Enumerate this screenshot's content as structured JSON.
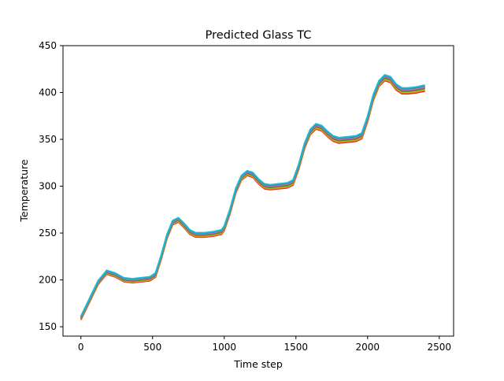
{
  "chart_data": {
    "type": "line",
    "title": "Predicted Glass TC",
    "xlabel": "Time step",
    "ylabel": "Temperature",
    "xlim": [
      -125,
      2600
    ],
    "ylim": [
      140,
      450
    ],
    "xticks": [
      0,
      500,
      1000,
      1500,
      2000,
      2500
    ],
    "yticks": [
      150,
      200,
      250,
      300,
      350,
      400,
      450
    ],
    "grid": false,
    "legend": "none",
    "base_curve": {
      "x": [
        0,
        60,
        120,
        180,
        240,
        300,
        360,
        420,
        480,
        520,
        560,
        600,
        640,
        680,
        720,
        760,
        800,
        860,
        920,
        980,
        1000,
        1040,
        1080,
        1120,
        1160,
        1200,
        1240,
        1280,
        1320,
        1380,
        1440,
        1480,
        1520,
        1560,
        1600,
        1640,
        1680,
        1720,
        1760,
        1800,
        1860,
        1920,
        1960,
        2000,
        2040,
        2080,
        2120,
        2160,
        2200,
        2240,
        2280,
        2340,
        2400
      ],
      "y": [
        160,
        179,
        198,
        209,
        206,
        201,
        200,
        201,
        202,
        206,
        225,
        247,
        262,
        265,
        259,
        252,
        249,
        249,
        250,
        252,
        256,
        274,
        296,
        310,
        315,
        313,
        306,
        301,
        300,
        301,
        302,
        305,
        322,
        344,
        359,
        365,
        363,
        357,
        352,
        350,
        351,
        352,
        355,
        373,
        396,
        411,
        417,
        415,
        407,
        403,
        403,
        404,
        406
      ]
    },
    "series": [
      {
        "color": "#d62728",
        "offset": -4.4
      },
      {
        "color": "#ff7f0e",
        "offset": -3.4
      },
      {
        "color": "#bcbd22",
        "offset": -2.4
      },
      {
        "color": "#2ca02c",
        "offset": -1.6
      },
      {
        "color": "#8c564b",
        "offset": -0.8
      },
      {
        "color": "#9467bd",
        "offset": -0.2
      },
      {
        "color": "#e377c2",
        "offset": 0.4
      },
      {
        "color": "#7f7f7f",
        "offset": 1.0
      },
      {
        "color": "#1f77b4",
        "offset": 1.4
      },
      {
        "color": "#17becf",
        "offset": 1.9
      }
    ]
  }
}
